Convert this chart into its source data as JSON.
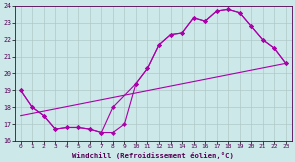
{
  "bg_color": "#cce8e8",
  "grid_color": "#b0c8c8",
  "line_color": "#aa00aa",
  "xlabel": "Windchill (Refroidissement éolien,°C)",
  "xlim": [
    -0.5,
    23.5
  ],
  "ylim": [
    16,
    24
  ],
  "yticks": [
    16,
    17,
    18,
    19,
    20,
    21,
    22,
    23,
    24
  ],
  "xticks": [
    0,
    1,
    2,
    3,
    4,
    5,
    6,
    7,
    8,
    9,
    10,
    11,
    12,
    13,
    14,
    15,
    16,
    17,
    18,
    19,
    20,
    21,
    22,
    23
  ],
  "line1_x": [
    0,
    1,
    2,
    3,
    4,
    5,
    6,
    7,
    8,
    9,
    10,
    11,
    12,
    13,
    14,
    15,
    16,
    17,
    18,
    19,
    20,
    21,
    22,
    23
  ],
  "line1_y": [
    19.0,
    18.0,
    17.5,
    16.7,
    16.8,
    16.8,
    16.7,
    16.5,
    16.5,
    17.0,
    19.4,
    20.3,
    21.7,
    22.3,
    22.4,
    23.3,
    23.1,
    23.7,
    23.8,
    23.6,
    22.8,
    22.0,
    21.5,
    20.6
  ],
  "line2_x": [
    0,
    1,
    2,
    3,
    4,
    5,
    6,
    7,
    8,
    10,
    11,
    12,
    13,
    14,
    15,
    16,
    17,
    18,
    19,
    20,
    21,
    22,
    23
  ],
  "line2_y": [
    19.0,
    18.0,
    17.5,
    16.7,
    16.8,
    16.8,
    16.7,
    16.5,
    18.0,
    19.4,
    20.3,
    21.7,
    22.3,
    22.4,
    23.3,
    23.1,
    23.7,
    23.8,
    23.6,
    22.8,
    22.0,
    21.5,
    20.6
  ],
  "line3_x": [
    0,
    23
  ],
  "line3_y": [
    17.5,
    20.6
  ]
}
